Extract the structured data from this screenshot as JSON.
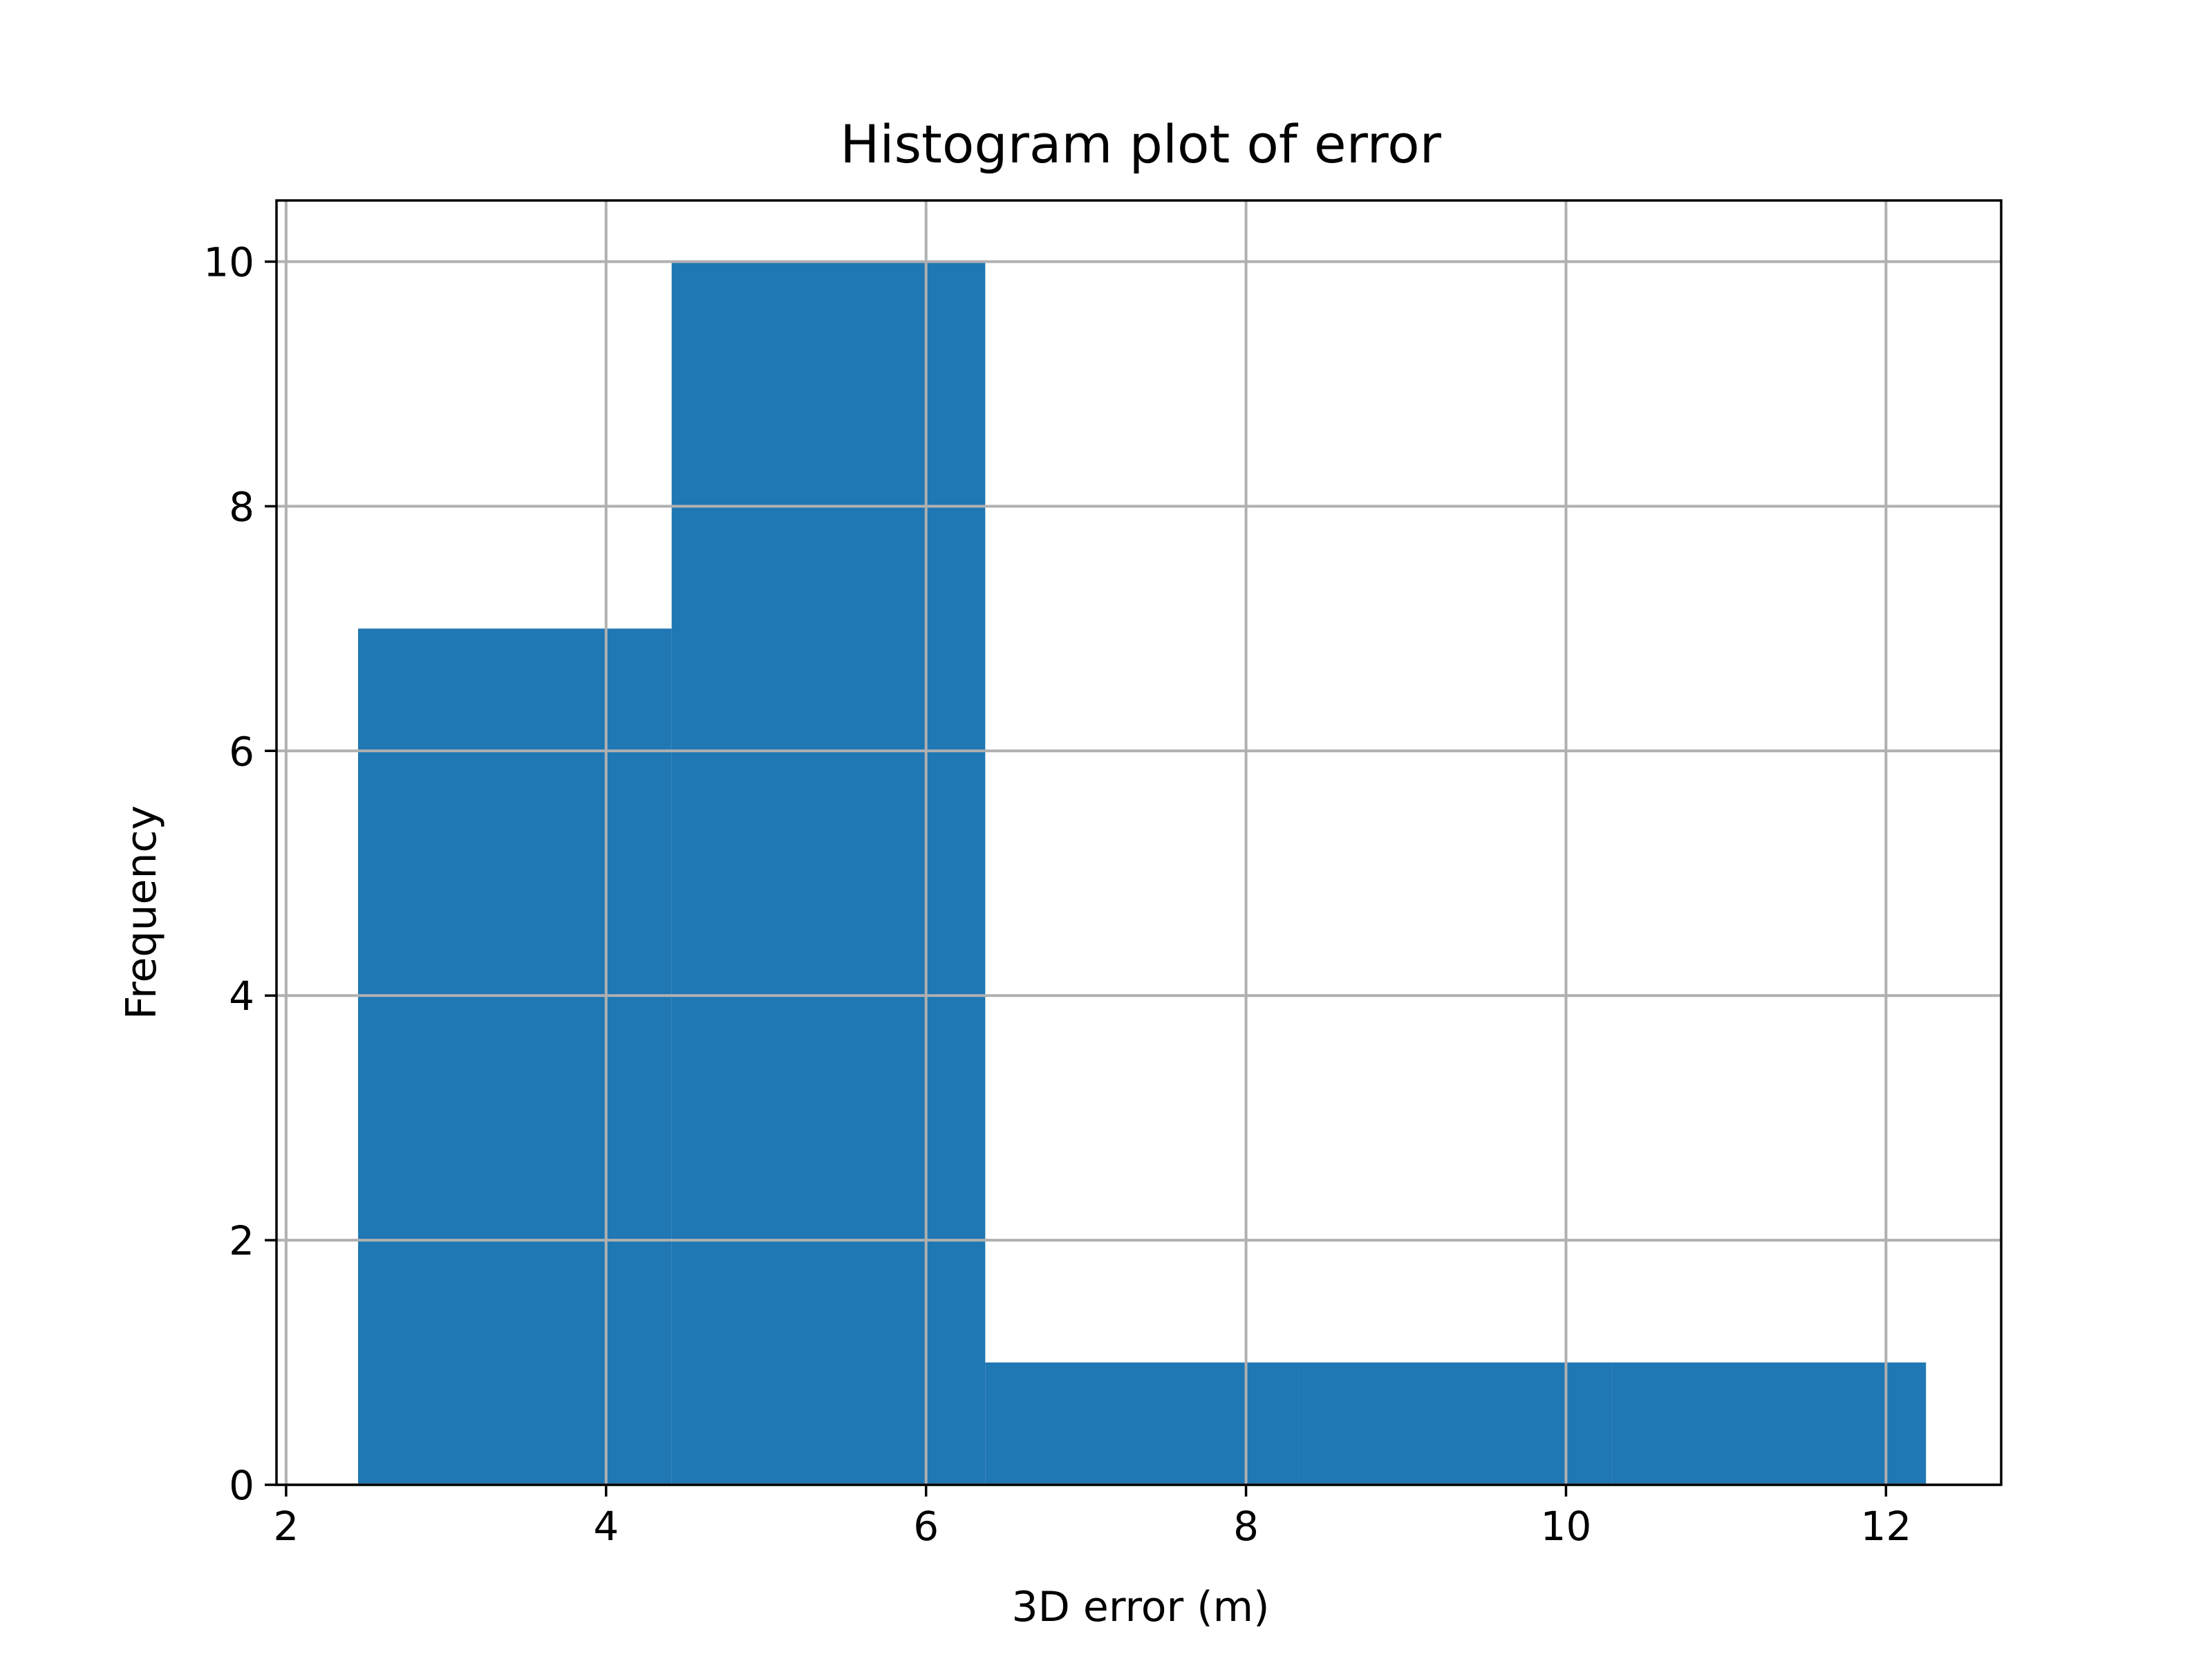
{
  "chart_data": {
    "type": "bar",
    "title": "Histogram plot of error",
    "xlabel": "3D error (m)",
    "ylabel": "Frequency",
    "xlim": [
      1.94,
      12.72
    ],
    "ylim": [
      0,
      10.5
    ],
    "xticks": [
      2,
      4,
      6,
      8,
      10,
      12
    ],
    "yticks": [
      0,
      2,
      4,
      6,
      8,
      10
    ],
    "grid": true,
    "bins": [
      {
        "x0": 2.45,
        "x1": 4.41,
        "value": 7
      },
      {
        "x0": 4.41,
        "x1": 6.37,
        "value": 10
      },
      {
        "x0": 6.37,
        "x1": 8.33,
        "value": 1
      },
      {
        "x0": 8.33,
        "x1": 10.29,
        "value": 1
      },
      {
        "x0": 10.29,
        "x1": 12.25,
        "value": 1
      }
    ],
    "bar_color": "#1f77b4",
    "grid_color": "#b0b0b0"
  }
}
